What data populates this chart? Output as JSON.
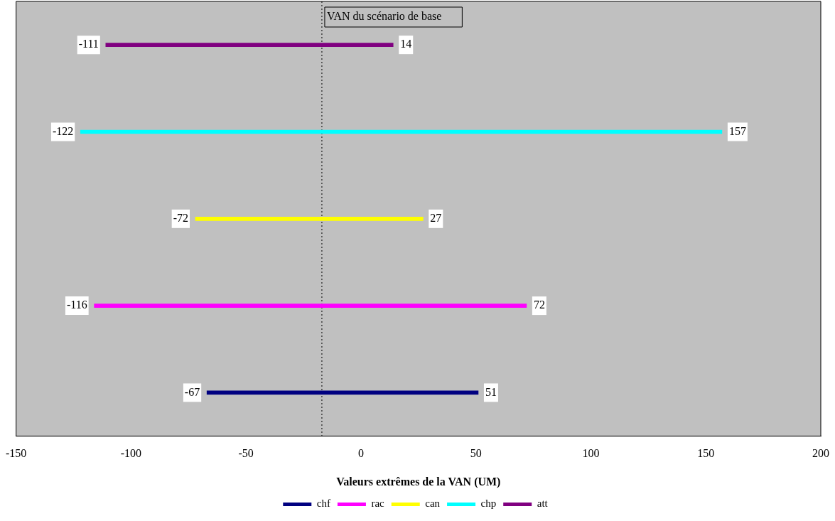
{
  "chart_data": {
    "type": "bar",
    "orientation": "horizontal",
    "xlabel": "Valeurs extrêmes de la VAN (UM)",
    "categories": [
      null,
      null,
      null,
      null,
      null
    ],
    "xlim": [
      -150,
      200
    ],
    "xticks": [
      -150,
      -100,
      -50,
      0,
      50,
      100,
      150,
      200
    ],
    "tick_labels": "x",
    "grid": false,
    "legend": "bottom",
    "series": [
      {
        "name": "chf",
        "color": "#000080",
        "base": [
          null,
          null,
          null,
          null,
          -67
        ],
        "values": [
          null,
          null,
          null,
          null,
          118
        ]
      },
      {
        "name": "rac",
        "color": "#ff00ff",
        "base": [
          null,
          null,
          null,
          -116,
          null
        ],
        "values": [
          null,
          null,
          null,
          188,
          null
        ]
      },
      {
        "name": "can",
        "color": "#ffff00",
        "base": [
          null,
          null,
          -72,
          null,
          null
        ],
        "values": [
          null,
          null,
          99,
          null,
          null
        ]
      },
      {
        "name": "chp",
        "color": "#00ffff",
        "base": [
          null,
          -122,
          null,
          null,
          null
        ],
        "values": [
          null,
          279,
          null,
          null,
          null
        ]
      },
      {
        "name": "att",
        "color": "#800080",
        "base": [
          -111,
          null,
          null,
          null,
          null
        ],
        "values": [
          125,
          null,
          null,
          null,
          null
        ]
      }
    ],
    "annotations": [
      {
        "text": "-67",
        "x": -67
      },
      {
        "text": "51",
        "x": 51
      },
      {
        "text": "-116",
        "x": -116
      },
      {
        "text": "72",
        "x": 72
      },
      {
        "text": "-72",
        "x": -72
      },
      {
        "text": "27",
        "x": 27
      },
      {
        "text": "-122",
        "x": -122
      },
      {
        "text": "157",
        "x": 157
      },
      {
        "text": "-111",
        "x": -111
      },
      {
        "text": "14",
        "x": 14
      }
    ],
    "ref_lines": [
      {
        "axis": "x",
        "value": -17,
        "label": "VAN du scénario de base",
        "line_style": "dotted",
        "color": "#000000"
      }
    ]
  }
}
